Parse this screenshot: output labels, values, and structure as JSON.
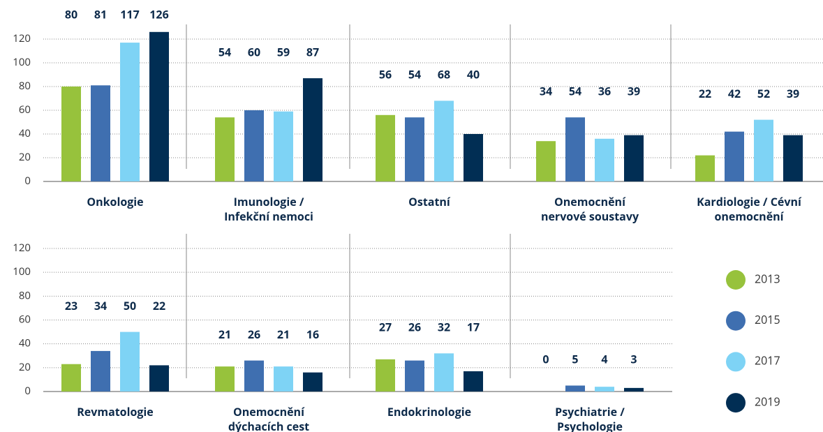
{
  "chart_data": {
    "type": "bar",
    "categories": [
      "Onkologie",
      "Imunologie /\nInfekční nemoci",
      "Ostatní",
      "Onemocnění\nnervové soustavy",
      "Kardiologie / Cévní\nonemocnění",
      "Revmatologie",
      "Onemocnění\ndýchacích cest",
      "Endokrinologie",
      "Psychiatrie /\nPsychologie"
    ],
    "series": [
      {
        "name": "2013",
        "color": "#97c23c",
        "values": [
          80,
          54,
          56,
          34,
          22,
          23,
          21,
          27,
          0
        ]
      },
      {
        "name": "2015",
        "color": "#3f6fb0",
        "values": [
          81,
          60,
          54,
          54,
          42,
          34,
          26,
          26,
          5
        ]
      },
      {
        "name": "2017",
        "color": "#7ed3f5",
        "values": [
          117,
          59,
          68,
          36,
          52,
          50,
          21,
          32,
          4
        ]
      },
      {
        "name": "2019",
        "color": "#012e54",
        "values": [
          126,
          87,
          40,
          39,
          39,
          22,
          16,
          17,
          3
        ]
      }
    ],
    "ylim": [
      0,
      120
    ],
    "yticks": [
      0,
      20,
      40,
      60,
      80,
      100,
      120
    ],
    "grid": true,
    "legend": "right"
  }
}
